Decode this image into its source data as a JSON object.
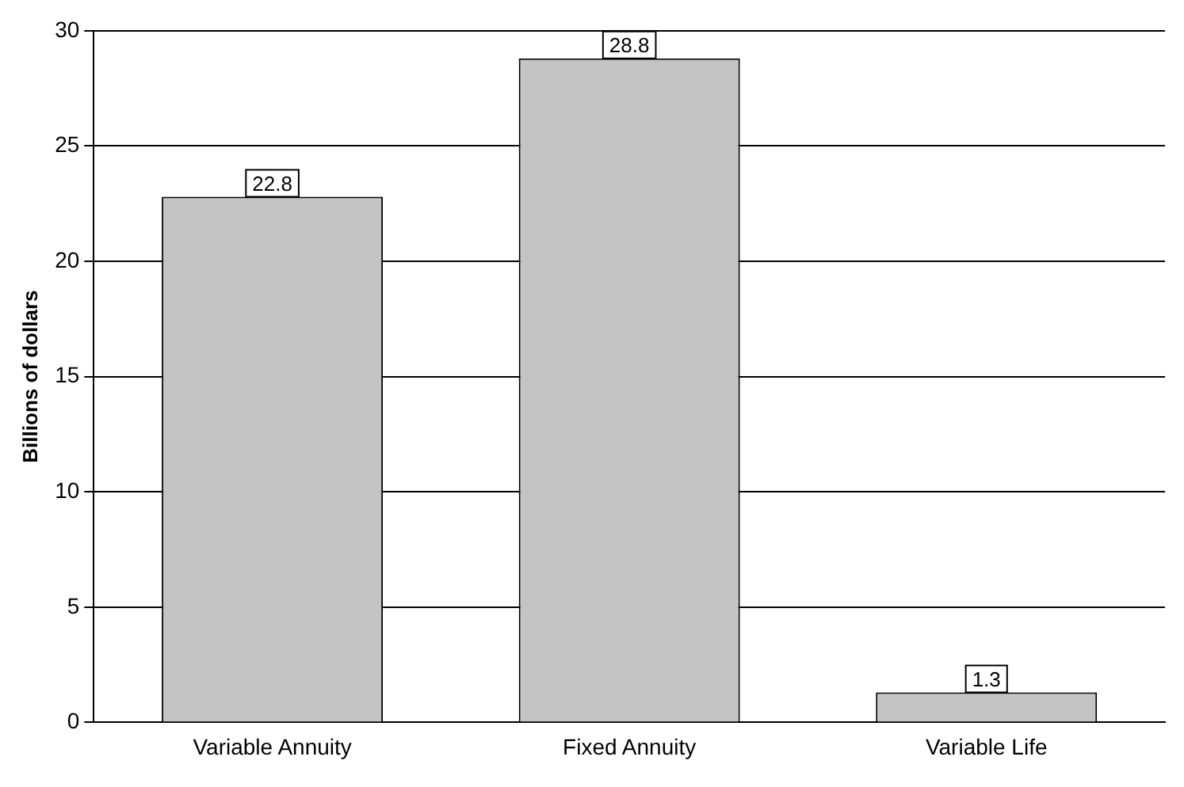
{
  "chart_data": {
    "type": "bar",
    "ylabel": "Billions of dollars",
    "categories": [
      "Variable Annuity",
      "Fixed Annuity",
      "Variable Life"
    ],
    "values": [
      22.8,
      28.8,
      1.3
    ],
    "color": "#c4c4c4",
    "ylim": [
      0,
      30
    ],
    "yticks": [
      0,
      5,
      10,
      15,
      20,
      25,
      30
    ],
    "grid": "y",
    "data_labels": true,
    "legend": false
  }
}
